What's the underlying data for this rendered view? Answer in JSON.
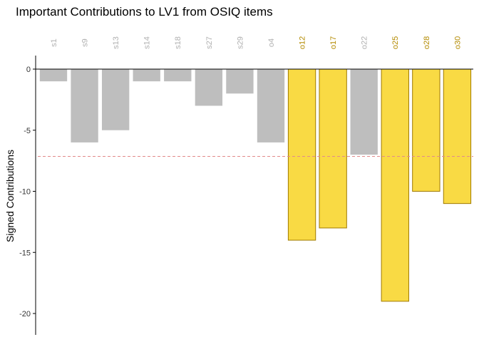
{
  "chart_data": {
    "type": "bar",
    "title": "Important Contributions to LV1 from OSIQ items",
    "xlabel": "",
    "ylabel": "Signed Contributions",
    "categories": [
      "s1",
      "s9",
      "s13",
      "s14",
      "s18",
      "s27",
      "s29",
      "o4",
      "o12",
      "o17",
      "o22",
      "o25",
      "o28",
      "o30"
    ],
    "values": [
      -1,
      -6,
      -5,
      -1,
      -1,
      -3,
      -2,
      -6,
      -14,
      -13,
      -7,
      -19,
      -10,
      -11
    ],
    "important": [
      false,
      false,
      false,
      false,
      false,
      false,
      false,
      false,
      true,
      true,
      false,
      true,
      true,
      true
    ],
    "ylim": [
      -22,
      1
    ],
    "yticks": [
      0,
      -5,
      -10,
      -15,
      -20
    ],
    "ytick_labels": [
      "0",
      "-5",
      "-10",
      "-15",
      "-20"
    ],
    "threshold": -7.14,
    "colors": {
      "important_fill": "#F9DA44",
      "important_stroke": "#A07A00",
      "important_label": "#B38A00",
      "other_fill": "#BEBEBE",
      "other_label": "#B0B0B0",
      "threshold_line": "#E28A8A",
      "axis": "#000000"
    },
    "grid": false,
    "legend": "none"
  }
}
